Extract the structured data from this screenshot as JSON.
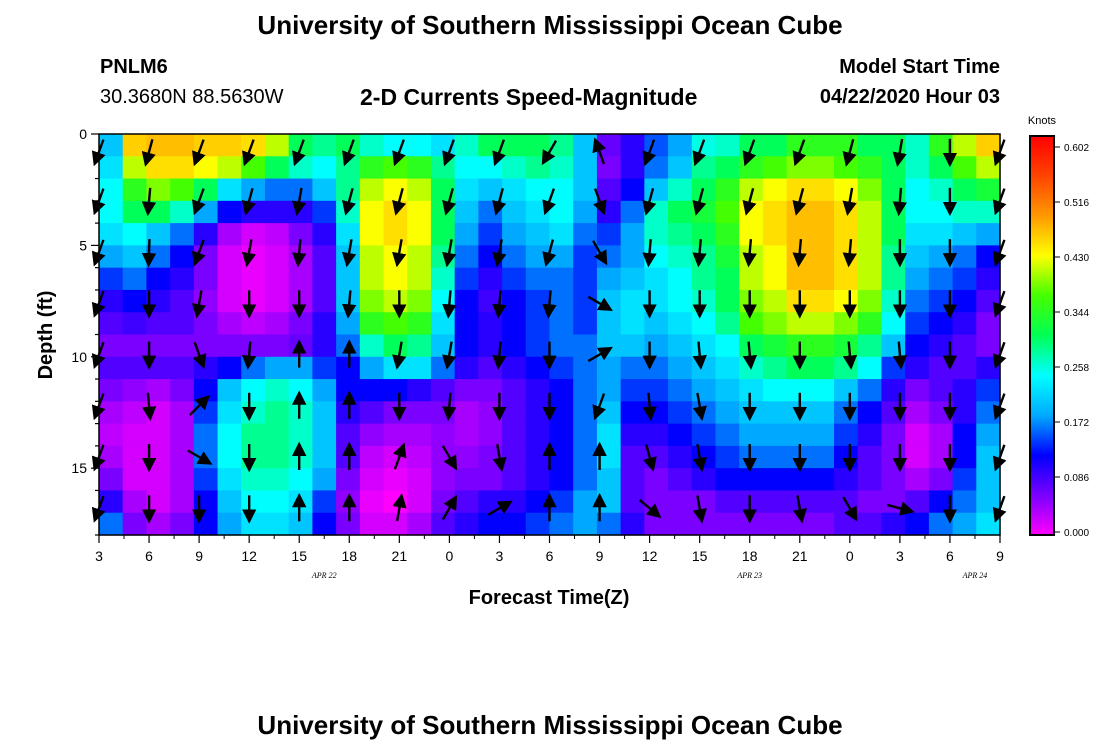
{
  "page": {
    "title_top": "University of Southern Mississippi Ocean Cube",
    "title_bottom": "University of Southern Mississippi Ocean Cube",
    "station": "PNLM6",
    "coords": "30.3680N 88.5630W",
    "subtitle": "2-D Currents Speed-Magnitude",
    "model_label": "Model Start Time",
    "model_time": "04/22/2020 Hour 03"
  },
  "chart_data": {
    "type": "heatmap",
    "title": "2-D Currents Speed-Magnitude",
    "xlabel": "Forecast Time(Z)",
    "ylabel": "Depth (ft)",
    "x_tick_labels": [
      "3",
      "6",
      "9",
      "12",
      "15",
      "18",
      "21",
      "0",
      "3",
      "6",
      "9",
      "12",
      "15",
      "18",
      "21",
      "0",
      "3",
      "6",
      "9"
    ],
    "date_labels": [
      {
        "label": "APR  22",
        "at_tick": 4.5
      },
      {
        "label": "APR  23",
        "at_tick": 13
      },
      {
        "label": "APR  24",
        "at_tick": 17.5
      }
    ],
    "x_range_hours": [
      0,
      54
    ],
    "y_ticks": [
      0,
      5,
      10,
      15
    ],
    "ylim": [
      0,
      18
    ],
    "y_inverted": true,
    "colorbar": {
      "title": "Knots",
      "ticks": [
        "0.602",
        "0.516",
        "0.430",
        "0.344",
        "0.258",
        "0.172",
        "0.086",
        "0.000"
      ],
      "min": 0.0,
      "max": 0.602,
      "stops": [
        "#ff00ff",
        "#7a00ff",
        "#0000ff",
        "#00aaff",
        "#00ffff",
        "#00ff55",
        "#44ff00",
        "#ffff00",
        "#ff9900",
        "#ff4400",
        "#ff0000"
      ]
    },
    "depth_levels_ft": [
      0.5,
      1.5,
      2.5,
      3.5,
      4.5,
      5.5,
      6.5,
      7.5,
      8.5,
      9.5,
      10.5,
      11.5,
      12.5,
      13.5,
      14.5,
      15.5,
      16.5,
      17.5
    ],
    "speed_grid_knots": [
      [
        0.2,
        0.45,
        0.46,
        0.46,
        0.45,
        0.45,
        0.44,
        0.4,
        0.3,
        0.28,
        0.3,
        0.26,
        0.24,
        0.24,
        0.22,
        0.26,
        0.3,
        0.3,
        0.3,
        0.28,
        0.2,
        0.07,
        0.1,
        0.15,
        0.18,
        0.25,
        0.26,
        0.3,
        0.3,
        0.34,
        0.34,
        0.34,
        0.3,
        0.3,
        0.26,
        0.34,
        0.4,
        0.45
      ],
      [
        0.22,
        0.4,
        0.44,
        0.44,
        0.42,
        0.4,
        0.36,
        0.3,
        0.26,
        0.24,
        0.28,
        0.34,
        0.36,
        0.34,
        0.28,
        0.24,
        0.24,
        0.26,
        0.28,
        0.26,
        0.2,
        0.06,
        0.1,
        0.16,
        0.2,
        0.28,
        0.3,
        0.34,
        0.36,
        0.38,
        0.38,
        0.36,
        0.34,
        0.3,
        0.26,
        0.3,
        0.36,
        0.4
      ],
      [
        0.24,
        0.34,
        0.38,
        0.36,
        0.3,
        0.22,
        0.18,
        0.16,
        0.16,
        0.2,
        0.28,
        0.4,
        0.42,
        0.4,
        0.3,
        0.22,
        0.2,
        0.22,
        0.24,
        0.24,
        0.2,
        0.08,
        0.12,
        0.2,
        0.26,
        0.3,
        0.34,
        0.4,
        0.42,
        0.44,
        0.44,
        0.42,
        0.38,
        0.3,
        0.24,
        0.26,
        0.3,
        0.32
      ],
      [
        0.24,
        0.3,
        0.3,
        0.26,
        0.18,
        0.12,
        0.1,
        0.1,
        0.1,
        0.14,
        0.26,
        0.42,
        0.44,
        0.42,
        0.3,
        0.2,
        0.16,
        0.2,
        0.22,
        0.24,
        0.18,
        0.1,
        0.16,
        0.26,
        0.3,
        0.32,
        0.36,
        0.42,
        0.44,
        0.46,
        0.46,
        0.44,
        0.4,
        0.3,
        0.24,
        0.24,
        0.26,
        0.26
      ],
      [
        0.22,
        0.24,
        0.2,
        0.16,
        0.1,
        0.04,
        0.02,
        0.03,
        0.06,
        0.1,
        0.22,
        0.42,
        0.44,
        0.42,
        0.3,
        0.18,
        0.14,
        0.18,
        0.2,
        0.22,
        0.16,
        0.14,
        0.18,
        0.26,
        0.28,
        0.3,
        0.34,
        0.42,
        0.44,
        0.46,
        0.46,
        0.44,
        0.4,
        0.3,
        0.22,
        0.22,
        0.2,
        0.18
      ],
      [
        0.18,
        0.2,
        0.16,
        0.12,
        0.06,
        0.02,
        0.01,
        0.02,
        0.04,
        0.08,
        0.2,
        0.4,
        0.42,
        0.4,
        0.28,
        0.16,
        0.12,
        0.16,
        0.18,
        0.18,
        0.14,
        0.16,
        0.18,
        0.24,
        0.26,
        0.28,
        0.32,
        0.4,
        0.42,
        0.46,
        0.46,
        0.44,
        0.4,
        0.28,
        0.2,
        0.18,
        0.16,
        0.12
      ],
      [
        0.14,
        0.16,
        0.12,
        0.1,
        0.06,
        0.02,
        0.01,
        0.02,
        0.04,
        0.08,
        0.2,
        0.4,
        0.42,
        0.4,
        0.26,
        0.14,
        0.1,
        0.14,
        0.16,
        0.16,
        0.14,
        0.18,
        0.2,
        0.22,
        0.24,
        0.28,
        0.3,
        0.4,
        0.42,
        0.46,
        0.46,
        0.44,
        0.4,
        0.28,
        0.18,
        0.16,
        0.14,
        0.1
      ],
      [
        0.1,
        0.12,
        0.1,
        0.08,
        0.05,
        0.02,
        0.01,
        0.02,
        0.04,
        0.08,
        0.2,
        0.38,
        0.4,
        0.38,
        0.24,
        0.12,
        0.09,
        0.12,
        0.14,
        0.16,
        0.14,
        0.2,
        0.22,
        0.22,
        0.24,
        0.26,
        0.3,
        0.38,
        0.4,
        0.44,
        0.44,
        0.42,
        0.38,
        0.26,
        0.16,
        0.14,
        0.12,
        0.08
      ],
      [
        0.08,
        0.09,
        0.08,
        0.08,
        0.06,
        0.04,
        0.03,
        0.04,
        0.06,
        0.1,
        0.18,
        0.34,
        0.36,
        0.34,
        0.22,
        0.12,
        0.1,
        0.12,
        0.14,
        0.16,
        0.14,
        0.2,
        0.22,
        0.2,
        0.22,
        0.24,
        0.28,
        0.36,
        0.38,
        0.4,
        0.4,
        0.38,
        0.34,
        0.24,
        0.14,
        0.12,
        0.1,
        0.06
      ],
      [
        0.06,
        0.06,
        0.06,
        0.06,
        0.06,
        0.06,
        0.06,
        0.06,
        0.07,
        0.1,
        0.16,
        0.26,
        0.3,
        0.28,
        0.2,
        0.12,
        0.1,
        0.12,
        0.14,
        0.16,
        0.16,
        0.2,
        0.2,
        0.18,
        0.2,
        0.22,
        0.24,
        0.3,
        0.32,
        0.34,
        0.34,
        0.32,
        0.28,
        0.2,
        0.12,
        0.1,
        0.08,
        0.06
      ],
      [
        0.08,
        0.08,
        0.08,
        0.08,
        0.1,
        0.12,
        0.16,
        0.18,
        0.18,
        0.14,
        0.12,
        0.18,
        0.22,
        0.22,
        0.16,
        0.1,
        0.08,
        0.1,
        0.12,
        0.14,
        0.16,
        0.18,
        0.16,
        0.16,
        0.18,
        0.2,
        0.22,
        0.26,
        0.28,
        0.3,
        0.3,
        0.28,
        0.24,
        0.14,
        0.1,
        0.08,
        0.08,
        0.1
      ],
      [
        0.06,
        0.05,
        0.04,
        0.06,
        0.12,
        0.2,
        0.24,
        0.26,
        0.24,
        0.18,
        0.12,
        0.12,
        0.12,
        0.1,
        0.08,
        0.06,
        0.06,
        0.08,
        0.1,
        0.12,
        0.16,
        0.18,
        0.14,
        0.14,
        0.16,
        0.18,
        0.2,
        0.22,
        0.24,
        0.24,
        0.24,
        0.2,
        0.16,
        0.1,
        0.06,
        0.08,
        0.1,
        0.14
      ],
      [
        0.04,
        0.03,
        0.02,
        0.04,
        0.14,
        0.22,
        0.26,
        0.28,
        0.26,
        0.2,
        0.1,
        0.08,
        0.06,
        0.06,
        0.06,
        0.04,
        0.05,
        0.08,
        0.1,
        0.12,
        0.16,
        0.2,
        0.12,
        0.12,
        0.14,
        0.16,
        0.18,
        0.2,
        0.2,
        0.2,
        0.2,
        0.16,
        0.12,
        0.08,
        0.04,
        0.06,
        0.1,
        0.16
      ],
      [
        0.03,
        0.02,
        0.02,
        0.04,
        0.16,
        0.24,
        0.28,
        0.28,
        0.26,
        0.2,
        0.08,
        0.05,
        0.04,
        0.04,
        0.05,
        0.04,
        0.05,
        0.08,
        0.1,
        0.12,
        0.16,
        0.22,
        0.1,
        0.1,
        0.12,
        0.14,
        0.16,
        0.18,
        0.18,
        0.18,
        0.18,
        0.14,
        0.1,
        0.06,
        0.02,
        0.04,
        0.12,
        0.18
      ],
      [
        0.04,
        0.02,
        0.02,
        0.04,
        0.16,
        0.24,
        0.28,
        0.28,
        0.26,
        0.2,
        0.08,
        0.03,
        0.02,
        0.03,
        0.05,
        0.05,
        0.06,
        0.08,
        0.1,
        0.12,
        0.16,
        0.22,
        0.08,
        0.08,
        0.1,
        0.12,
        0.14,
        0.16,
        0.16,
        0.16,
        0.16,
        0.12,
        0.08,
        0.06,
        0.02,
        0.04,
        0.12,
        0.2
      ],
      [
        0.06,
        0.02,
        0.02,
        0.04,
        0.14,
        0.22,
        0.26,
        0.26,
        0.24,
        0.18,
        0.06,
        0.02,
        0.01,
        0.02,
        0.05,
        0.06,
        0.06,
        0.08,
        0.1,
        0.12,
        0.16,
        0.2,
        0.08,
        0.06,
        0.08,
        0.1,
        0.12,
        0.12,
        0.12,
        0.12,
        0.12,
        0.1,
        0.08,
        0.06,
        0.04,
        0.06,
        0.14,
        0.2
      ],
      [
        0.1,
        0.04,
        0.02,
        0.04,
        0.12,
        0.2,
        0.24,
        0.24,
        0.22,
        0.14,
        0.05,
        0.01,
        0.0,
        0.02,
        0.06,
        0.08,
        0.1,
        0.1,
        0.12,
        0.14,
        0.18,
        0.2,
        0.08,
        0.06,
        0.06,
        0.06,
        0.08,
        0.08,
        0.08,
        0.08,
        0.08,
        0.08,
        0.06,
        0.06,
        0.08,
        0.12,
        0.16,
        0.2
      ],
      [
        0.16,
        0.06,
        0.04,
        0.06,
        0.12,
        0.18,
        0.22,
        0.22,
        0.2,
        0.12,
        0.06,
        0.02,
        0.02,
        0.04,
        0.08,
        0.1,
        0.12,
        0.12,
        0.14,
        0.16,
        0.18,
        0.16,
        0.1,
        0.06,
        0.06,
        0.06,
        0.06,
        0.06,
        0.06,
        0.06,
        0.06,
        0.08,
        0.08,
        0.1,
        0.12,
        0.16,
        0.18,
        0.22
      ]
    ],
    "vector_times_hours": [
      0,
      3,
      6,
      9,
      12,
      15,
      18,
      21,
      24,
      27,
      30,
      33,
      36,
      39,
      42,
      45,
      48,
      51,
      54
    ],
    "vector_depths_ft": [
      0.8,
      3.0,
      5.3,
      7.6,
      9.9,
      12.2,
      14.5,
      16.8
    ],
    "vector_dir_deg": [
      [
        200,
        200,
        200,
        200,
        200,
        200,
        200,
        200
      ],
      [
        195,
        185,
        182,
        180,
        180,
        175,
        180,
        180
      ],
      [
        200,
        200,
        200,
        190,
        160,
        45,
        120,
        180
      ],
      [
        200,
        195,
        190,
        180,
        185,
        180,
        180,
        180
      ],
      [
        200,
        190,
        185,
        180,
        0,
        0,
        0,
        0
      ],
      [
        200,
        195,
        190,
        185,
        0,
        0,
        0,
        0
      ],
      [
        200,
        195,
        190,
        180,
        190,
        180,
        20,
        10
      ],
      [
        200,
        195,
        190,
        185,
        190,
        185,
        150,
        30
      ],
      [
        200,
        195,
        190,
        185,
        185,
        180,
        170,
        60
      ],
      [
        210,
        200,
        195,
        185,
        180,
        180,
        0,
        0
      ],
      [
        340,
        160,
        150,
        120,
        60,
        200,
        0,
        0
      ],
      [
        200,
        195,
        185,
        180,
        180,
        175,
        165,
        130
      ],
      [
        200,
        195,
        185,
        180,
        175,
        170,
        170,
        170
      ],
      [
        200,
        195,
        185,
        180,
        175,
        180,
        180,
        180
      ],
      [
        200,
        195,
        185,
        180,
        180,
        180,
        180,
        170
      ],
      [
        195,
        190,
        185,
        180,
        175,
        180,
        180,
        150
      ],
      [
        190,
        185,
        180,
        180,
        175,
        180,
        180,
        105
      ],
      [
        180,
        180,
        180,
        180,
        180,
        180,
        180,
        180
      ],
      [
        200,
        200,
        200,
        200,
        200,
        200,
        200,
        200
      ]
    ]
  }
}
